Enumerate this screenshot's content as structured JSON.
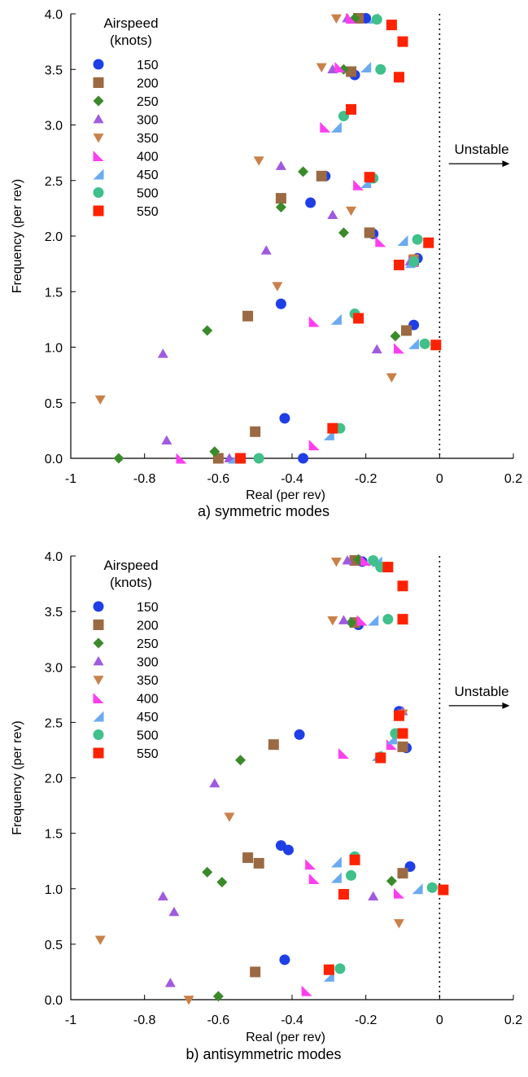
{
  "markers": {
    "150": {
      "shape": "circle",
      "color": "#1f3fe6"
    },
    "200": {
      "shape": "square",
      "color": "#9b6a43"
    },
    "250": {
      "shape": "diamond",
      "color": "#3a8a2a"
    },
    "300": {
      "shape": "triangle-up",
      "color": "#a05ae0"
    },
    "350": {
      "shape": "triangle-down",
      "color": "#c9814a"
    },
    "400": {
      "shape": "flag-right",
      "color": "#ff3ef0"
    },
    "450": {
      "shape": "flag-left",
      "color": "#6aaaf2"
    },
    "500": {
      "shape": "circle",
      "color": "#40c08a"
    },
    "550": {
      "shape": "square",
      "color": "#ff2200"
    }
  },
  "chart_data": [
    {
      "type": "scatter",
      "caption": "a) symmetric modes",
      "xlabel": "Real (per rev)",
      "ylabel": "Frequency (per rev)",
      "xlim": [
        -1,
        0.2
      ],
      "ylim": [
        0,
        4.0
      ],
      "xticks": [
        -1,
        -0.8,
        -0.6,
        -0.4,
        -0.2,
        0,
        0.2
      ],
      "xtick_labels": [
        "-1",
        "-0.8",
        "-0.6",
        "-0.4",
        "-0.2",
        "0",
        "0.2"
      ],
      "yticks": [
        0,
        0.5,
        1.0,
        1.5,
        2.0,
        2.5,
        3.0,
        3.5,
        4.0
      ],
      "ytick_labels": [
        "0.0",
        "0.5",
        "1.0",
        "1.5",
        "2.0",
        "2.5",
        "3.0",
        "3.5",
        "4.0"
      ],
      "legend_title": [
        "Airspeed",
        "(knots)"
      ],
      "legend_location": "top-left",
      "annotation": "Unstable",
      "reference_line_x": 0,
      "series": [
        {
          "name": "150",
          "points": [
            [
              -0.42,
              0.36
            ],
            [
              -0.37,
              0.0
            ],
            [
              -0.43,
              1.39
            ],
            [
              -0.35,
              2.3
            ],
            [
              -0.31,
              2.54
            ],
            [
              -0.18,
              2.02
            ],
            [
              -0.07,
              1.2
            ],
            [
              -0.06,
              1.8
            ],
            [
              -0.23,
              3.45
            ],
            [
              -0.2,
              3.96
            ]
          ]
        },
        {
          "name": "200",
          "points": [
            [
              -0.5,
              0.24
            ],
            [
              -0.6,
              0.0
            ],
            [
              -0.52,
              1.28
            ],
            [
              -0.43,
              2.34
            ],
            [
              -0.32,
              2.54
            ],
            [
              -0.19,
              2.03
            ],
            [
              -0.09,
              1.15
            ],
            [
              -0.07,
              1.78
            ],
            [
              -0.24,
              3.48
            ],
            [
              -0.22,
              3.96
            ]
          ]
        },
        {
          "name": "250",
          "points": [
            [
              -0.61,
              0.06
            ],
            [
              -0.87,
              0.0
            ],
            [
              -0.63,
              1.15
            ],
            [
              -0.43,
              2.26
            ],
            [
              -0.37,
              2.58
            ],
            [
              -0.26,
              2.03
            ],
            [
              -0.12,
              1.1
            ],
            [
              -0.07,
              1.76
            ],
            [
              -0.26,
              3.5
            ],
            [
              -0.23,
              3.96
            ]
          ]
        },
        {
          "name": "300",
          "points": [
            [
              -0.74,
              0.16
            ],
            [
              -0.57,
              0.0
            ],
            [
              -0.75,
              0.94
            ],
            [
              -0.47,
              1.87
            ],
            [
              -0.43,
              2.63
            ],
            [
              -0.29,
              2.19
            ],
            [
              -0.17,
              0.98
            ],
            [
              -0.08,
              1.77
            ],
            [
              -0.29,
              3.5
            ],
            [
              -0.25,
              3.96
            ]
          ]
        },
        {
          "name": "350",
          "points": [
            [
              -0.92,
              0.53
            ],
            [
              -0.44,
              1.55
            ],
            [
              -0.49,
              2.68
            ],
            [
              -0.24,
              2.23
            ],
            [
              -0.13,
              0.73
            ],
            [
              -0.07,
              1.8
            ],
            [
              -0.32,
              3.52
            ],
            [
              -0.28,
              3.96
            ]
          ]
        },
        {
          "name": "400",
          "points": [
            [
              -0.7,
              0.0
            ],
            [
              -0.34,
              0.12
            ],
            [
              -0.34,
              1.23
            ],
            [
              -0.22,
              2.46
            ],
            [
              -0.16,
              1.95
            ],
            [
              -0.11,
              0.99
            ],
            [
              -0.07,
              1.77
            ],
            [
              -0.31,
              2.98
            ],
            [
              -0.27,
              3.52
            ],
            [
              -0.24,
              3.96
            ]
          ]
        },
        {
          "name": "450",
          "points": [
            [
              -0.56,
              0.0
            ],
            [
              -0.3,
              0.21
            ],
            [
              -0.28,
              1.25
            ],
            [
              -0.2,
              2.48
            ],
            [
              -0.1,
              1.96
            ],
            [
              -0.07,
              1.03
            ],
            [
              -0.08,
              1.76
            ],
            [
              -0.28,
              2.98
            ],
            [
              -0.2,
              3.52
            ],
            [
              -0.18,
              3.96
            ]
          ]
        },
        {
          "name": "500",
          "points": [
            [
              -0.49,
              0.0
            ],
            [
              -0.27,
              0.27
            ],
            [
              -0.23,
              1.3
            ],
            [
              -0.18,
              2.52
            ],
            [
              -0.06,
              1.97
            ],
            [
              -0.04,
              1.03
            ],
            [
              -0.07,
              1.77
            ],
            [
              -0.26,
              3.08
            ],
            [
              -0.16,
              3.5
            ],
            [
              -0.17,
              3.95
            ]
          ]
        },
        {
          "name": "550",
          "points": [
            [
              -0.54,
              0.0
            ],
            [
              -0.29,
              0.27
            ],
            [
              -0.22,
              1.26
            ],
            [
              -0.19,
              2.53
            ],
            [
              -0.03,
              1.94
            ],
            [
              -0.01,
              1.02
            ],
            [
              -0.11,
              1.74
            ],
            [
              -0.24,
              3.14
            ],
            [
              -0.11,
              3.43
            ],
            [
              -0.1,
              3.75
            ],
            [
              -0.13,
              3.9
            ]
          ]
        }
      ]
    },
    {
      "type": "scatter",
      "caption": "b) antisymmetric modes",
      "xlabel": "Real (per rev)",
      "ylabel": "Frequency (per rev)",
      "xlim": [
        -1,
        0.2
      ],
      "ylim": [
        0,
        4.0
      ],
      "xticks": [
        -1,
        -0.8,
        -0.6,
        -0.4,
        -0.2,
        0,
        0.2
      ],
      "xtick_labels": [
        "-1",
        "-0.8",
        "-0.6",
        "-0.4",
        "-0.2",
        "0",
        "0.2"
      ],
      "yticks": [
        0,
        0.5,
        1.0,
        1.5,
        2.0,
        2.5,
        3.0,
        3.5,
        4.0
      ],
      "ytick_labels": [
        "0.0",
        "0.5",
        "1.0",
        "1.5",
        "2.0",
        "2.5",
        "3.0",
        "3.5",
        "4.0"
      ],
      "legend_title": [
        "Airspeed",
        "(knots)"
      ],
      "legend_location": "top-left",
      "annotation": "Unstable",
      "reference_line_x": 0,
      "series": [
        {
          "name": "150",
          "points": [
            [
              -0.42,
              0.36
            ],
            [
              -0.43,
              1.39
            ],
            [
              -0.41,
              1.35
            ],
            [
              -0.38,
              2.39
            ],
            [
              -0.11,
              2.6
            ],
            [
              -0.08,
              1.2
            ],
            [
              -0.09,
              2.27
            ],
            [
              -0.22,
              3.38
            ],
            [
              -0.21,
              3.95
            ]
          ]
        },
        {
          "name": "200",
          "points": [
            [
              -0.5,
              0.25
            ],
            [
              -0.52,
              1.28
            ],
            [
              -0.49,
              1.23
            ],
            [
              -0.45,
              2.3
            ],
            [
              -0.1,
              2.28
            ],
            [
              -0.1,
              1.14
            ],
            [
              -0.23,
              3.4
            ],
            [
              -0.23,
              3.96
            ]
          ]
        },
        {
          "name": "250",
          "points": [
            [
              -0.6,
              0.03
            ],
            [
              -0.63,
              1.15
            ],
            [
              -0.59,
              1.06
            ],
            [
              -0.54,
              2.16
            ],
            [
              -0.13,
              1.07
            ],
            [
              -0.24,
              3.4
            ],
            [
              -0.22,
              3.97
            ]
          ]
        },
        {
          "name": "300",
          "points": [
            [
              -0.73,
              0.15
            ],
            [
              -0.75,
              0.93
            ],
            [
              -0.72,
              0.79
            ],
            [
              -0.61,
              1.95
            ],
            [
              -0.18,
              0.93
            ],
            [
              -0.1,
              2.6
            ],
            [
              -0.26,
              3.42
            ],
            [
              -0.25,
              3.96
            ]
          ]
        },
        {
          "name": "350",
          "points": [
            [
              -0.92,
              0.54
            ],
            [
              -0.68,
              0.0
            ],
            [
              -0.57,
              1.65
            ],
            [
              -0.11,
              0.69
            ],
            [
              -0.1,
              2.58
            ],
            [
              -0.29,
              3.42
            ],
            [
              -0.28,
              3.95
            ]
          ]
        },
        {
          "name": "400",
          "points": [
            [
              -0.36,
              0.08
            ],
            [
              -0.35,
              1.22
            ],
            [
              -0.34,
              1.09
            ],
            [
              -0.26,
              2.22
            ],
            [
              -0.11,
              0.96
            ],
            [
              -0.13,
              2.3
            ],
            [
              -0.21,
              3.42
            ],
            [
              -0.2,
              3.96
            ]
          ]
        },
        {
          "name": "450",
          "points": [
            [
              -0.3,
              0.21
            ],
            [
              -0.28,
              1.24
            ],
            [
              -0.28,
              1.1
            ],
            [
              -0.13,
              2.35
            ],
            [
              -0.06,
              1.0
            ],
            [
              -0.17,
              2.2
            ],
            [
              -0.18,
              3.42
            ],
            [
              -0.17,
              3.95
            ]
          ]
        },
        {
          "name": "500",
          "points": [
            [
              -0.27,
              0.28
            ],
            [
              -0.23,
              1.29
            ],
            [
              -0.24,
              1.12
            ],
            [
              -0.12,
              2.4
            ],
            [
              -0.02,
              1.01
            ],
            [
              -0.16,
              2.19
            ],
            [
              -0.14,
              3.43
            ],
            [
              -0.16,
              3.9
            ],
            [
              -0.18,
              3.96
            ]
          ]
        },
        {
          "name": "550",
          "points": [
            [
              -0.3,
              0.27
            ],
            [
              -0.23,
              1.26
            ],
            [
              -0.26,
              0.95
            ],
            [
              -0.1,
              2.4
            ],
            [
              0.01,
              0.99
            ],
            [
              -0.11,
              2.56
            ],
            [
              -0.16,
              2.18
            ],
            [
              -0.1,
              3.43
            ],
            [
              -0.1,
              3.73
            ],
            [
              -0.14,
              3.9
            ]
          ]
        }
      ]
    }
  ]
}
